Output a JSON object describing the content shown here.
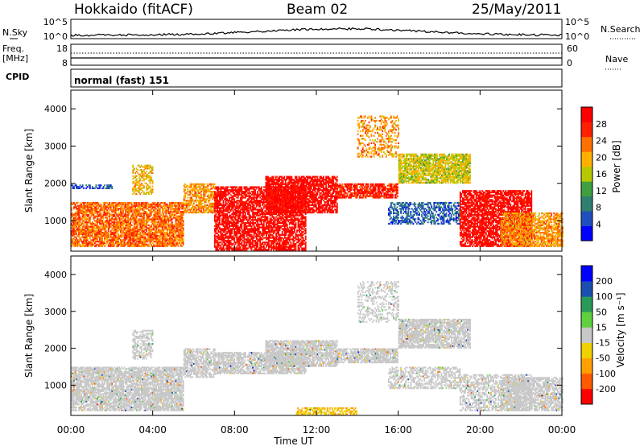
{
  "header": {
    "station": "Hokkaido (fitACF)",
    "beam": "Beam 02",
    "date": "25/May/2011"
  },
  "status_panels": {
    "nsky": {
      "label": "N.Sky",
      "ticks": [
        "10^5",
        "10^0"
      ]
    },
    "nsearch": {
      "label": "N.Search",
      "ticks": [
        "10^5",
        "10^0"
      ]
    },
    "freq": {
      "label_line1": "Freq.",
      "label_line2": "[MHz]",
      "ticks": [
        "18",
        "8"
      ]
    },
    "nave": {
      "label": "Nave",
      "ticks": [
        "60",
        "0"
      ]
    },
    "cpid": {
      "label": "CPID",
      "value": "normal (fast) 151"
    }
  },
  "colors": {
    "power": [
      "#0000ff",
      "#1f4fbf",
      "#2f7f6f",
      "#3fa040",
      "#b8c800",
      "#ffb000",
      "#ff7000",
      "#ff2000",
      "#ff0000"
    ],
    "velocity": [
      "#ff0000",
      "#ff5a00",
      "#ffa000",
      "#f0d000",
      "#c8c8c8",
      "#5fd040",
      "#2a9a5a",
      "#1a4fb0",
      "#0000ff"
    ]
  },
  "chart_data": [
    {
      "type": "heatmap",
      "name": "power",
      "xlabel": "",
      "ylabel": "Slant Range [km]",
      "xlim": [
        0,
        24
      ],
      "ylim": [
        180,
        4500
      ],
      "y_ticks": [
        "1000",
        "2000",
        "3000",
        "4000"
      ],
      "colorbar": {
        "label": "Power [dB]",
        "ticks": [
          "28",
          "24",
          "20",
          "16",
          "12",
          "8",
          "4"
        ],
        "range": [
          0,
          30
        ]
      },
      "echo_bands": [
        {
          "t0": 0.0,
          "t1": 5.5,
          "r0": 300,
          "r1": 1500,
          "level": 22,
          "density": 0.8
        },
        {
          "t0": 0.0,
          "t1": 2.0,
          "r0": 1850,
          "r1": 1950,
          "level": 6,
          "density": 0.55
        },
        {
          "t0": 3.0,
          "t1": 4.0,
          "r0": 1700,
          "r1": 2500,
          "level": 18,
          "density": 0.55
        },
        {
          "t0": 5.5,
          "t1": 7.0,
          "r0": 1200,
          "r1": 2000,
          "level": 20,
          "density": 0.7
        },
        {
          "t0": 7.0,
          "t1": 11.5,
          "r0": 200,
          "r1": 1900,
          "level": 28,
          "density": 0.75
        },
        {
          "t0": 9.5,
          "t1": 13.0,
          "r0": 1200,
          "r1": 2200,
          "level": 28,
          "density": 0.8
        },
        {
          "t0": 13.0,
          "t1": 16.0,
          "r0": 1600,
          "r1": 2000,
          "level": 26,
          "density": 0.8
        },
        {
          "t0": 16.0,
          "t1": 19.5,
          "r0": 2000,
          "r1": 2800,
          "level": 16,
          "density": 0.8
        },
        {
          "t0": 15.5,
          "t1": 19.0,
          "r0": 900,
          "r1": 1500,
          "level": 6,
          "density": 0.55
        },
        {
          "t0": 14.0,
          "t1": 16.0,
          "r0": 2700,
          "r1": 3800,
          "level": 20,
          "density": 0.35
        },
        {
          "t0": 19.0,
          "t1": 22.5,
          "r0": 300,
          "r1": 1800,
          "level": 28,
          "density": 0.75
        },
        {
          "t0": 21.0,
          "t1": 24.0,
          "r0": 300,
          "r1": 1200,
          "level": 20,
          "density": 0.7
        }
      ]
    },
    {
      "type": "heatmap",
      "name": "velocity",
      "xlabel": "Time UT",
      "ylabel": "Slant Range [km]",
      "xlim": [
        0,
        24
      ],
      "ylim": [
        180,
        4500
      ],
      "x_ticks": [
        "00:00",
        "04:00",
        "08:00",
        "12:00",
        "16:00",
        "20:00",
        "00:00"
      ],
      "y_ticks": [
        "1000",
        "2000",
        "3000",
        "4000"
      ],
      "colorbar": {
        "label": "Velocity [m s⁻¹]",
        "ticks": [
          "200",
          "100",
          "50",
          "15",
          "-15",
          "-50",
          "-100",
          "-200"
        ],
        "range": [
          -250,
          250
        ]
      },
      "echo_bands": [
        {
          "t0": 0.0,
          "t1": 5.5,
          "r0": 300,
          "r1": 1500,
          "level": 0,
          "density": 0.8
        },
        {
          "t0": 3.0,
          "t1": 4.0,
          "r0": 1700,
          "r1": 2500,
          "level": 0,
          "density": 0.55
        },
        {
          "t0": 5.5,
          "t1": 7.0,
          "r0": 1200,
          "r1": 2000,
          "level": 0,
          "density": 0.7
        },
        {
          "t0": 7.0,
          "t1": 11.5,
          "r0": 1300,
          "r1": 1900,
          "level": 0,
          "density": 0.75
        },
        {
          "t0": 9.5,
          "t1": 13.0,
          "r0": 1500,
          "r1": 2200,
          "level": 0,
          "density": 0.8
        },
        {
          "t0": 13.0,
          "t1": 16.0,
          "r0": 1600,
          "r1": 2000,
          "level": 0,
          "density": 0.8
        },
        {
          "t0": 16.0,
          "t1": 19.5,
          "r0": 2000,
          "r1": 2800,
          "level": 0,
          "density": 0.8
        },
        {
          "t0": 15.5,
          "t1": 19.0,
          "r0": 900,
          "r1": 1500,
          "level": 0,
          "density": 0.55
        },
        {
          "t0": 14.0,
          "t1": 16.0,
          "r0": 2700,
          "r1": 3800,
          "level": 0,
          "density": 0.35
        },
        {
          "t0": 19.0,
          "t1": 22.5,
          "r0": 300,
          "r1": 1300,
          "level": 0,
          "density": 0.55
        },
        {
          "t0": 21.0,
          "t1": 24.0,
          "r0": 300,
          "r1": 1200,
          "level": 0,
          "density": 0.7
        },
        {
          "t0": 11.0,
          "t1": 14.0,
          "r0": 200,
          "r1": 400,
          "level": -80,
          "density": 0.6
        }
      ]
    }
  ]
}
